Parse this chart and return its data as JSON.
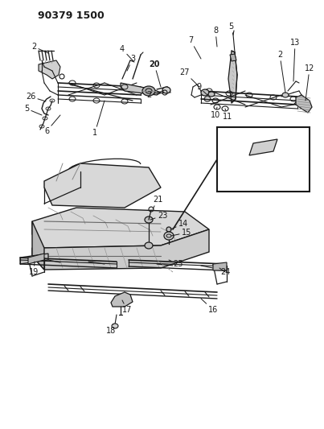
{
  "title_code": "90379 1500",
  "bg_color": "#ffffff",
  "line_color": "#1a1a1a",
  "fig_w": 4.03,
  "fig_h": 5.33,
  "dpi": 100
}
